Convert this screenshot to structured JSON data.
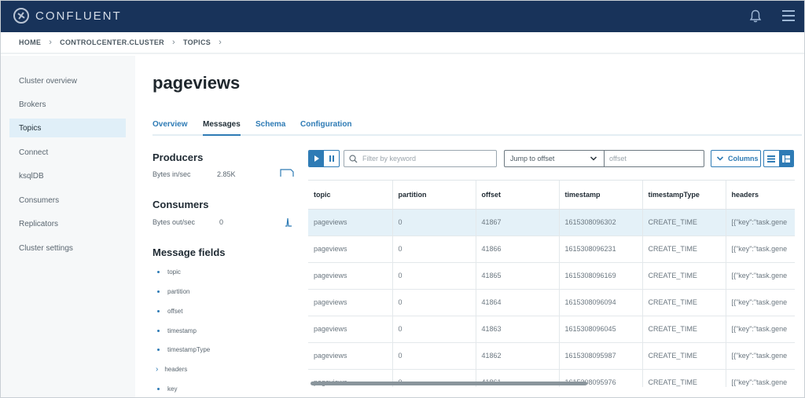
{
  "header": {
    "brand": "CONFLUENT"
  },
  "breadcrumb": [
    "HOME",
    "CONTROLCENTER.CLUSTER",
    "TOPICS"
  ],
  "sidebar": {
    "items": [
      {
        "label": "Cluster overview",
        "active": false
      },
      {
        "label": "Brokers",
        "active": false
      },
      {
        "label": "Topics",
        "active": true
      },
      {
        "label": "Connect",
        "active": false
      },
      {
        "label": "ksqlDB",
        "active": false
      },
      {
        "label": "Consumers",
        "active": false
      },
      {
        "label": "Replicators",
        "active": false
      },
      {
        "label": "Cluster settings",
        "active": false
      }
    ]
  },
  "page": {
    "title": "pageviews"
  },
  "tabs": [
    {
      "label": "Overview",
      "active": false
    },
    {
      "label": "Messages",
      "active": true
    },
    {
      "label": "Schema",
      "active": false
    },
    {
      "label": "Configuration",
      "active": false
    }
  ],
  "producers": {
    "title": "Producers",
    "metric_label": "Bytes in/sec",
    "metric_value": "2.85K"
  },
  "consumers": {
    "title": "Consumers",
    "metric_label": "Bytes out/sec",
    "metric_value": "0"
  },
  "message_fields": {
    "title": "Message fields",
    "fields": [
      {
        "name": "topic",
        "expandable": false
      },
      {
        "name": "partition",
        "expandable": false
      },
      {
        "name": "offset",
        "expandable": false
      },
      {
        "name": "timestamp",
        "expandable": false
      },
      {
        "name": "timestampType",
        "expandable": false
      },
      {
        "name": "headers",
        "expandable": true
      },
      {
        "name": "key",
        "expandable": false
      }
    ]
  },
  "toolbar": {
    "search_placeholder": "Filter by keyword",
    "jump_select_value": "Jump to offset",
    "offset_placeholder": "offset",
    "columns_label": "Columns"
  },
  "table": {
    "columns": [
      "topic",
      "partition",
      "offset",
      "timestamp",
      "timestampType",
      "headers"
    ],
    "rows": [
      [
        "pageviews",
        "0",
        "41867",
        "1615308096302",
        "CREATE_TIME",
        "[{\"key\":\"task.gene"
      ],
      [
        "pageviews",
        "0",
        "41866",
        "1615308096231",
        "CREATE_TIME",
        "[{\"key\":\"task.gene"
      ],
      [
        "pageviews",
        "0",
        "41865",
        "1615308096169",
        "CREATE_TIME",
        "[{\"key\":\"task.gene"
      ],
      [
        "pageviews",
        "0",
        "41864",
        "1615308096094",
        "CREATE_TIME",
        "[{\"key\":\"task.gene"
      ],
      [
        "pageviews",
        "0",
        "41863",
        "1615308096045",
        "CREATE_TIME",
        "[{\"key\":\"task.gene"
      ],
      [
        "pageviews",
        "0",
        "41862",
        "1615308095987",
        "CREATE_TIME",
        "[{\"key\":\"task.gene"
      ],
      [
        "pageviews",
        "0",
        "41861",
        "1615308095976",
        "CREATE_TIME",
        "[{\"key\":\"task.gene"
      ]
    ],
    "selected_row": 0
  },
  "colors": {
    "nav_bg": "#18335a",
    "accent": "#2e7bb5",
    "selected_row": "#e4f1f8",
    "sidebar_active": "#e0eff8"
  }
}
